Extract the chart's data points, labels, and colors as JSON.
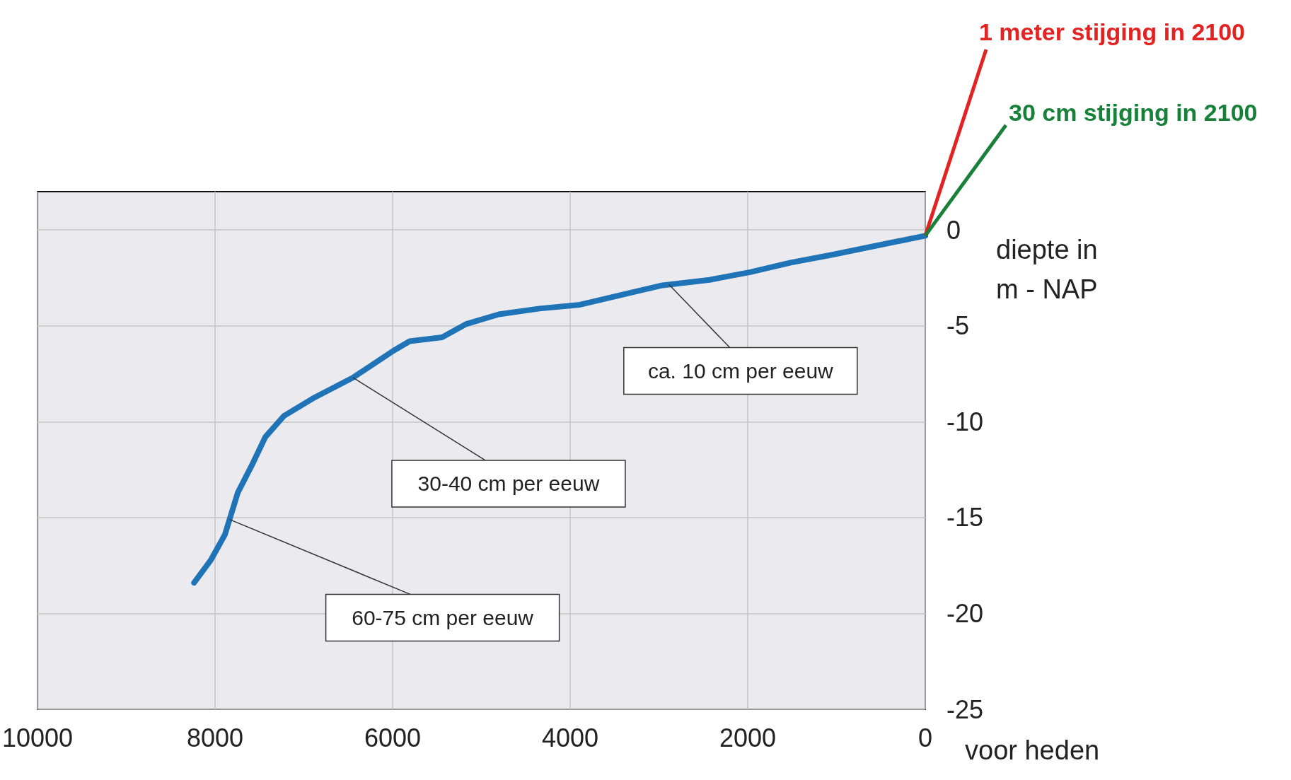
{
  "chart_data": {
    "type": "line",
    "xlabel": "voor heden",
    "ylabel": "diepte in\nm - NAP",
    "xlim": [
      10000,
      0
    ],
    "xticks": [
      10000,
      8000,
      6000,
      4000,
      2000,
      0
    ],
    "ylim": [
      -25,
      2
    ],
    "yticks": [
      0,
      -5,
      -10,
      -15,
      -20,
      -25
    ],
    "grid": true,
    "line_style": "solid",
    "series": [
      {
        "color": "#1f73b7",
        "x": [
          8237,
          8046,
          7890,
          7744,
          7589,
          7434,
          7224,
          6904,
          6447,
          5991,
          5808,
          5443,
          5169,
          4804,
          4347,
          3890,
          3342,
          2977,
          2429,
          1973,
          1516,
          1059,
          0
        ],
        "values": [
          -18.4,
          -17.2,
          -15.9,
          -13.7,
          -12.3,
          -10.8,
          -9.7,
          -8.8,
          -7.7,
          -6.3,
          -5.8,
          -5.6,
          -4.9,
          -4.4,
          -4.1,
          -3.9,
          -3.3,
          -2.9,
          -2.6,
          -2.2,
          -1.7,
          -1.3,
          -0.3
        ]
      }
    ],
    "annotations": [
      {
        "text": "ca. 10 cm per eeuw",
        "x": 2886,
        "y": -2.85
      },
      {
        "text": "30-40 cm per eeuw",
        "x": 6447,
        "y": -7.7
      },
      {
        "text": "60-75 cm per eeuw",
        "x": 7836,
        "y": -15.1
      },
      {
        "text": "1 meter stijging in 2100",
        "x": 0,
        "y": -0.3
      },
      {
        "text": "30 cm stijging in 2100",
        "x": 0,
        "y": -0.3
      }
    ]
  }
}
